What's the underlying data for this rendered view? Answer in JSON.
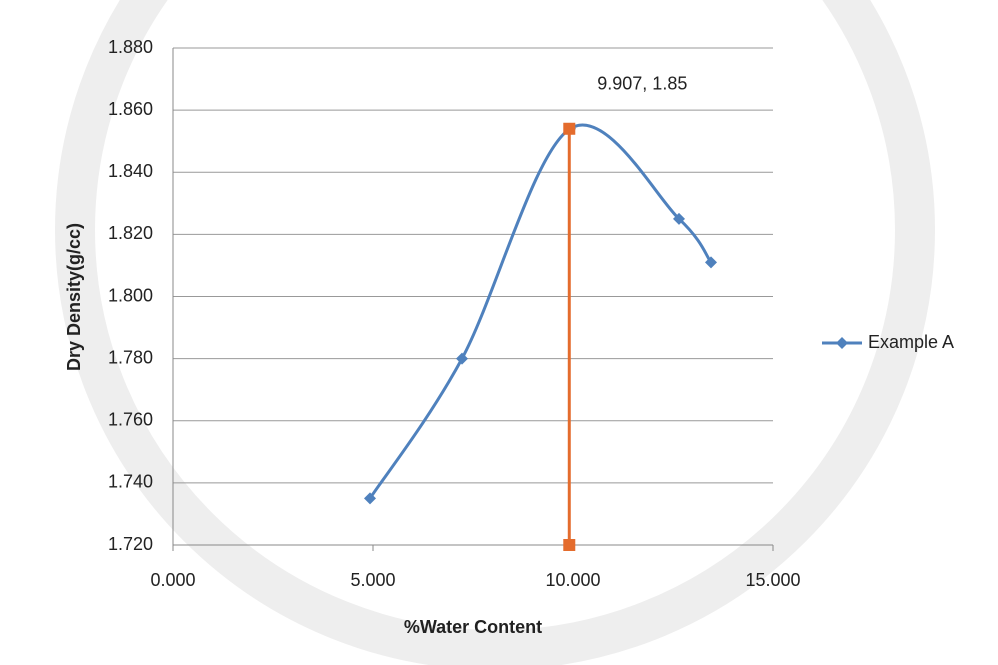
{
  "chart_data": {
    "type": "scatter",
    "x_label": "%Water Content",
    "y_label": "Dry Density(g/cc)",
    "xlim": [
      0,
      15
    ],
    "xticks": [
      {
        "value": 0,
        "label": "0.000"
      },
      {
        "value": 5,
        "label": "5.000"
      },
      {
        "value": 10,
        "label": "10.000"
      },
      {
        "value": 15,
        "label": "15.000"
      }
    ],
    "ylim": [
      1.72,
      1.88
    ],
    "yticks": [
      {
        "value": 1.72,
        "label": "1.720"
      },
      {
        "value": 1.74,
        "label": "1.740"
      },
      {
        "value": 1.76,
        "label": "1.760"
      },
      {
        "value": 1.78,
        "label": "1.780"
      },
      {
        "value": 1.8,
        "label": "1.800"
      },
      {
        "value": 1.82,
        "label": "1.820"
      },
      {
        "value": 1.84,
        "label": "1.840"
      },
      {
        "value": 1.86,
        "label": "1.860"
      },
      {
        "value": 1.88,
        "label": "1.880"
      }
    ],
    "grid": true,
    "legend": "right",
    "series": [
      {
        "name": "Example A",
        "color": "#4f81bd",
        "marker": "diamond",
        "smooth": true,
        "x": [
          4.925,
          7.225,
          9.925,
          12.65,
          13.45
        ],
        "values": [
          1.735,
          1.78,
          1.854,
          1.825,
          1.811
        ]
      },
      {
        "color": "#e46c2d",
        "marker": "square",
        "smooth": false,
        "legend": false,
        "x": [
          9.907,
          9.907
        ],
        "values": [
          1.854,
          1.72
        ]
      }
    ],
    "annotations": [
      {
        "text": "9.907, 1.85",
        "x": 9.907,
        "y": 1.854
      }
    ]
  }
}
